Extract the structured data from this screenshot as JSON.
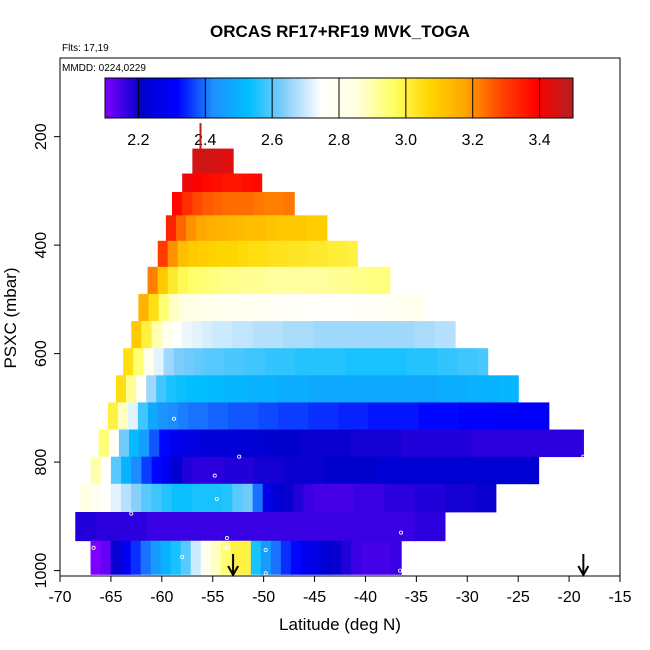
{
  "chart_data": {
    "type": "heatmap",
    "title": "ORCAS RF17+RF19 MVK_TOGA",
    "flights_label": "Flts: 17,19",
    "dates_label": "MMDD: 0224,0229",
    "xlabel": "Latitude (deg N)",
    "ylabel": "PSXC (mbar)",
    "xlim": [
      -70,
      -15
    ],
    "ylim": [
      1010,
      55
    ],
    "x_ticks": [
      -70,
      -65,
      -60,
      -55,
      -50,
      -45,
      -40,
      -35,
      -30,
      -25,
      -20,
      -15
    ],
    "y_ticks": [
      200,
      400,
      600,
      800,
      1000
    ],
    "colorbar": {
      "range": [
        2.1,
        3.5
      ],
      "ticks": [
        2.2,
        2.4,
        2.6,
        2.8,
        3.0,
        3.2,
        3.4
      ],
      "tick_labels": [
        "2.2",
        "2.4",
        "2.6",
        "2.8",
        "3.0",
        "3.2",
        "3.4"
      ],
      "stops": [
        "#7f00ff",
        "#0000cc",
        "#0000ff",
        "#1e90ff",
        "#00bfff",
        "#87cefa",
        "#ffffff",
        "#ffffe0",
        "#ffff66",
        "#ffd700",
        "#ffa500",
        "#ff4500",
        "#ff0000",
        "#b22222"
      ]
    },
    "layers": [
      {
        "p_top": 222,
        "p_bottom": 268,
        "lat_start": -57.0,
        "lat_end": -53.0,
        "values": [
          3.46,
          3.46,
          3.45,
          3.44
        ]
      },
      {
        "p_top": 268,
        "p_bottom": 302,
        "lat_start": -58.0,
        "lat_end": -50.2,
        "values": [
          3.42,
          3.4,
          3.38,
          3.37,
          3.36,
          3.36,
          3.37,
          3.38
        ]
      },
      {
        "p_top": 302,
        "p_bottom": 345,
        "lat_start": -59.0,
        "lat_end": -47.0,
        "values": [
          3.38,
          3.32,
          3.28,
          3.26,
          3.25,
          3.24,
          3.24,
          3.24,
          3.23,
          3.22,
          3.22,
          3.23
        ]
      },
      {
        "p_top": 345,
        "p_bottom": 392,
        "lat_start": -59.6,
        "lat_end": -43.8,
        "values": [
          3.34,
          3.25,
          3.2,
          3.17,
          3.16,
          3.15,
          3.14,
          3.13,
          3.12,
          3.12,
          3.11,
          3.1,
          3.1,
          3.1,
          3.09,
          3.09
        ]
      },
      {
        "p_top": 392,
        "p_bottom": 440,
        "lat_start": -60.4,
        "lat_end": -40.8,
        "values": [
          3.3,
          3.2,
          3.12,
          3.1,
          3.09,
          3.08,
          3.07,
          3.07,
          3.06,
          3.05,
          3.05,
          3.04,
          3.04,
          3.03,
          3.03,
          3.02,
          3.02,
          3.01,
          3.01,
          3.0
        ]
      },
      {
        "p_top": 440,
        "p_bottom": 490,
        "lat_start": -61.4,
        "lat_end": -37.6,
        "values": [
          3.22,
          3.1,
          3.02,
          2.98,
          2.96,
          2.95,
          2.94,
          2.93,
          2.93,
          2.92,
          2.92,
          2.92,
          2.91,
          2.91,
          2.91,
          2.91,
          2.91,
          2.91,
          2.92,
          2.92,
          2.93,
          2.93,
          2.94,
          2.94
        ]
      },
      {
        "p_top": 490,
        "p_bottom": 540,
        "lat_start": -62.3,
        "lat_end": -34.4,
        "values": [
          3.15,
          3.05,
          2.95,
          2.88,
          2.85,
          2.83,
          2.82,
          2.81,
          2.8,
          2.8,
          2.79,
          2.79,
          2.78,
          2.78,
          2.77,
          2.77,
          2.76,
          2.76,
          2.76,
          2.76,
          2.76,
          2.77,
          2.77,
          2.78,
          2.78,
          2.79,
          2.8,
          2.82
        ]
      },
      {
        "p_top": 540,
        "p_bottom": 590,
        "lat_start": -63.0,
        "lat_end": -31.2,
        "values": [
          3.1,
          3.0,
          2.9,
          2.82,
          2.76,
          2.73,
          2.72,
          2.71,
          2.7,
          2.7,
          2.69,
          2.69,
          2.68,
          2.68,
          2.68,
          2.67,
          2.67,
          2.67,
          2.66,
          2.66,
          2.66,
          2.66,
          2.66,
          2.66,
          2.66,
          2.66,
          2.66,
          2.66,
          2.67,
          2.67,
          2.68,
          2.68
        ]
      },
      {
        "p_top": 590,
        "p_bottom": 640,
        "lat_start": -63.8,
        "lat_end": -28.0,
        "values": [
          3.05,
          2.95,
          2.82,
          2.72,
          2.66,
          2.63,
          2.62,
          2.61,
          2.6,
          2.6,
          2.59,
          2.59,
          2.58,
          2.58,
          2.57,
          2.57,
          2.57,
          2.56,
          2.56,
          2.56,
          2.56,
          2.56,
          2.55,
          2.55,
          2.55,
          2.55,
          2.55,
          2.55,
          2.56,
          2.56,
          2.56,
          2.57,
          2.57,
          2.58,
          2.58,
          2.59
        ]
      },
      {
        "p_top": 640,
        "p_bottom": 690,
        "lat_start": -64.5,
        "lat_end": -25.0,
        "values": [
          3.05,
          2.92,
          2.78,
          2.66,
          2.58,
          2.55,
          2.54,
          2.53,
          2.53,
          2.52,
          2.52,
          2.51,
          2.51,
          2.5,
          2.5,
          2.5,
          2.49,
          2.49,
          2.49,
          2.48,
          2.48,
          2.48,
          2.48,
          2.48,
          2.48,
          2.48,
          2.48,
          2.48,
          2.48,
          2.48,
          2.48,
          2.48,
          2.49,
          2.49,
          2.49,
          2.5,
          2.5,
          2.5,
          2.51,
          2.51
        ]
      },
      {
        "p_top": 690,
        "p_bottom": 740,
        "lat_start": -65.3,
        "lat_end": -22.0,
        "values": [
          3.0,
          2.88,
          2.72,
          2.58,
          2.48,
          2.44,
          2.42,
          2.41,
          2.4,
          2.4,
          2.39,
          2.39,
          2.38,
          2.38,
          2.38,
          2.37,
          2.37,
          2.36,
          2.36,
          2.36,
          2.35,
          2.35,
          2.35,
          2.34,
          2.34,
          2.34,
          2.33,
          2.33,
          2.33,
          2.33,
          2.33,
          2.32,
          2.32,
          2.32,
          2.32,
          2.31,
          2.31,
          2.31,
          2.31,
          2.3,
          2.3,
          2.3,
          2.3,
          2.3
        ]
      },
      {
        "p_top": 740,
        "p_bottom": 790,
        "lat_start": -66.2,
        "lat_end": -18.6,
        "values": [
          2.95,
          2.78,
          2.62,
          2.52,
          2.45,
          2.38,
          2.32,
          2.28,
          2.26,
          2.25,
          2.24,
          2.24,
          2.23,
          2.23,
          2.22,
          2.22,
          2.22,
          2.21,
          2.21,
          2.21,
          2.2,
          2.2,
          2.2,
          2.2,
          2.2,
          2.19,
          2.19,
          2.19,
          2.19,
          2.19,
          2.18,
          2.18,
          2.18,
          2.18,
          2.18,
          2.18,
          2.18,
          2.17,
          2.17,
          2.17,
          2.17,
          2.17,
          2.17,
          2.17,
          2.17,
          2.17,
          2.17,
          2.17
        ]
      },
      {
        "p_top": 790,
        "p_bottom": 840,
        "lat_start": -67.0,
        "lat_end": -23.0,
        "values": [
          2.9,
          2.75,
          2.6,
          2.5,
          2.42,
          2.36,
          2.32,
          2.28,
          2.22,
          2.18,
          2.17,
          2.17,
          2.17,
          2.18,
          2.18,
          2.18,
          2.19,
          2.19,
          2.19,
          2.2,
          2.2,
          2.2,
          2.2,
          2.21,
          2.21,
          2.21,
          2.21,
          2.21,
          2.22,
          2.22,
          2.22,
          2.22,
          2.22,
          2.22,
          2.22,
          2.22,
          2.22,
          2.22,
          2.22,
          2.22,
          2.22,
          2.22,
          2.22,
          2.22
        ]
      },
      {
        "p_top": 840,
        "p_bottom": 892,
        "lat_start": -68.0,
        "lat_end": -27.2,
        "values": [
          2.84,
          2.8,
          2.76,
          2.72,
          2.68,
          2.64,
          2.6,
          2.58,
          2.56,
          2.54,
          2.54,
          2.55,
          2.55,
          2.55,
          2.56,
          2.6,
          2.62,
          2.4,
          2.26,
          2.22,
          2.2,
          2.18,
          2.16,
          2.15,
          2.15,
          2.15,
          2.15,
          2.16,
          2.16,
          2.16,
          2.17,
          2.17,
          2.17,
          2.18,
          2.18,
          2.18,
          2.19,
          2.19,
          2.19,
          2.2,
          2.2
        ]
      },
      {
        "p_top": 892,
        "p_bottom": 945,
        "lat_start": -68.5,
        "lat_end": -32.2,
        "values": [
          2.18,
          2.18,
          2.17,
          2.17,
          2.17,
          2.17,
          2.17,
          2.16,
          2.16,
          2.16,
          2.16,
          2.16,
          2.16,
          2.16,
          2.16,
          2.16,
          2.16,
          2.16,
          2.16,
          2.16,
          2.16,
          2.16,
          2.16,
          2.16,
          2.16,
          2.16,
          2.16,
          2.16,
          2.16,
          2.16,
          2.16,
          2.16,
          2.16,
          2.17,
          2.17,
          2.17
        ]
      },
      {
        "p_top": 945,
        "p_bottom": 1007,
        "lat_start": -67.0,
        "lat_end": -36.5,
        "values": [
          2.1,
          2.12,
          2.2,
          2.28,
          2.35,
          2.4,
          2.45,
          2.5,
          2.55,
          2.6,
          2.7,
          2.8,
          2.88,
          2.95,
          3.0,
          3.0,
          2.55,
          2.45,
          2.4,
          2.35,
          2.32,
          2.28,
          2.25,
          2.22,
          2.2,
          2.18,
          2.16,
          2.15,
          2.15,
          2.15,
          2.16
        ]
      }
    ],
    "spike": {
      "lat": -56.2,
      "p_top": 175,
      "p_bottom": 222,
      "value": 3.48
    },
    "arrows": [
      {
        "lat": -53.0
      },
      {
        "lat": -18.6
      }
    ],
    "markers": [
      {
        "lat": -58.8,
        "p": 720
      },
      {
        "lat": -52.4,
        "p": 790
      },
      {
        "lat": -54.8,
        "p": 825
      },
      {
        "lat": -54.6,
        "p": 868
      },
      {
        "lat": -63.0,
        "p": 895
      },
      {
        "lat": -53.6,
        "p": 940
      },
      {
        "lat": -68.3,
        "p": 958
      },
      {
        "lat": -66.7,
        "p": 958
      },
      {
        "lat": -53.6,
        "p": 958
      },
      {
        "lat": -53.8,
        "p": 958
      },
      {
        "lat": -49.8,
        "p": 962
      },
      {
        "lat": -58.0,
        "p": 975
      },
      {
        "lat": -36.5,
        "p": 930
      },
      {
        "lat": -36.6,
        "p": 1000
      },
      {
        "lat": -18.6,
        "p": 790
      },
      {
        "lat": -49.8,
        "p": 1005
      }
    ]
  }
}
